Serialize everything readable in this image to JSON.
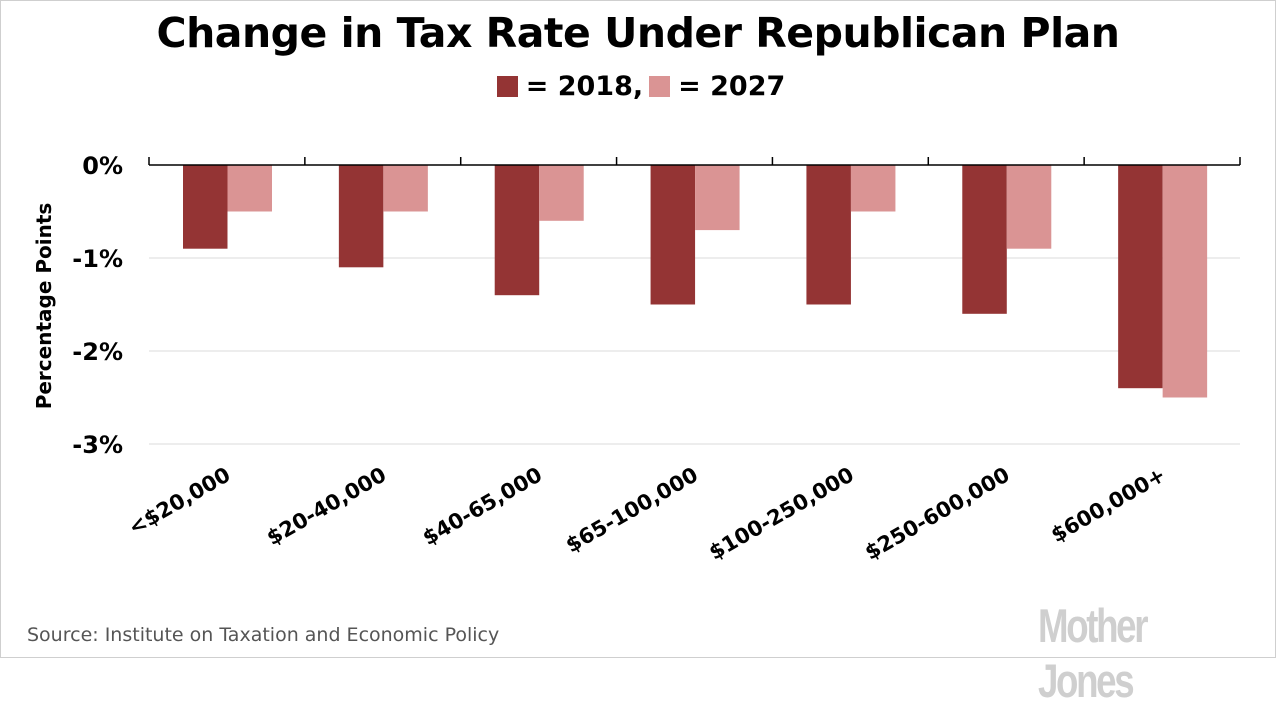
{
  "chart_data": {
    "type": "bar",
    "title": "Change in Tax Rate Under Republican Plan",
    "legend": [
      {
        "name": "2018",
        "label": "= 2018,",
        "color": "#943434"
      },
      {
        "name": "2027",
        "label": "= 2027",
        "color": "#da9494"
      }
    ],
    "legend_position": "top-center",
    "categories": [
      "<$20,000",
      "$20-40,000",
      "$40-65,000",
      "$65-100,000",
      "$100-250,000",
      "$250-600,000",
      "$600,000+"
    ],
    "series": [
      {
        "name": "2018",
        "color": "#943434",
        "values": [
          -0.9,
          -1.1,
          -1.4,
          -1.5,
          -1.5,
          -1.6,
          -2.4
        ]
      },
      {
        "name": "2027",
        "color": "#da9494",
        "values": [
          -0.5,
          -0.5,
          -0.6,
          -0.7,
          -0.5,
          -0.9,
          -2.5
        ]
      }
    ],
    "xlabel": "",
    "ylabel": "Percentage Points",
    "ylim": [
      -3,
      0
    ],
    "yticks": [
      0,
      -1,
      -2,
      -3
    ],
    "ytick_labels": [
      "0%",
      "-1%",
      "-2%",
      "-3%"
    ],
    "grid": true
  },
  "footer": {
    "source": "Source: Institute on Taxation and Economic Policy",
    "logo": "Mother Jones"
  }
}
